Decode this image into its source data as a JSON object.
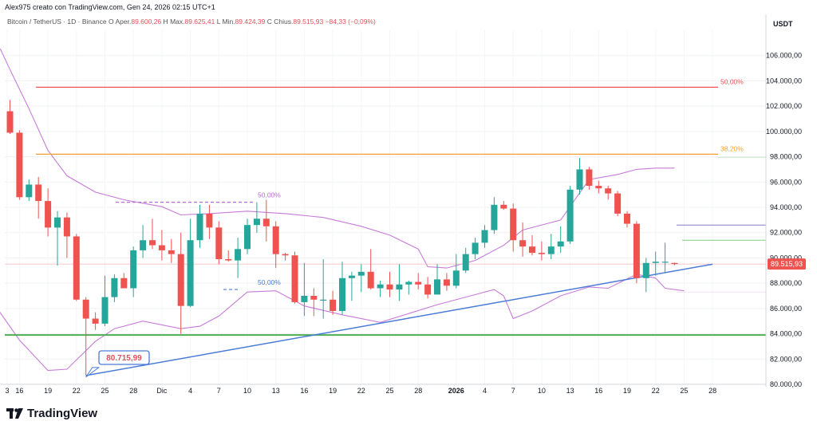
{
  "header": {
    "credit": "Alex975 creato con TradingView.com, Gen 24, 2026 02:15 UTC+1"
  },
  "info": {
    "symbol": "Bitcoin / TetherUS · 1D · Binance",
    "open_label": "O",
    "open_key": "Aper.",
    "open_value": "89.600,26",
    "high_label": "H",
    "high_key": "Max.",
    "high_value": "89.625,41",
    "low_label": "L",
    "low_key": "Min.",
    "low_value": "89.424,39",
    "close_label": "C",
    "close_key": "Chius.",
    "close_value": "89.515,93",
    "change_value": "−84,33 (−0,09%)"
  },
  "brand": {
    "name": "TradingView"
  },
  "colors": {
    "up": "#26a69a",
    "down": "#ef5350",
    "bb": "#c77bd8",
    "fib50": "#ef5350",
    "fib38": "#f0a030",
    "support": "#4caf50",
    "trend": "#4a7bd6",
    "price": "#ef5350"
  },
  "chart_data": {
    "type": "candlestick",
    "currency": "USDT",
    "ylim": [
      80000,
      108000
    ],
    "y_ticks": [
      80000,
      82000,
      84000,
      86000,
      88000,
      90000,
      92000,
      94000,
      96000,
      98000,
      100000,
      102000,
      104000,
      106000
    ],
    "y_tick_labels": [
      "80.000,00",
      "82.000,00",
      "84.000,00",
      "86.000,00",
      "88.000,00",
      "90.000,00",
      "92.000,00",
      "94.000,00",
      "96.000,00",
      "98.000,00",
      "100.000,00",
      "102.000,00",
      "104.000,00",
      "106.000,00"
    ],
    "x_tick_labels": [
      "3",
      "16",
      "19",
      "22",
      "25",
      "28",
      "Dic",
      "4",
      "7",
      "10",
      "13",
      "16",
      "19",
      "22",
      "25",
      "28",
      "2026",
      "4",
      "7",
      "10",
      "13",
      "16",
      "19",
      "22",
      "25",
      "28"
    ],
    "x_tick_index": [
      -12,
      1,
      4,
      7,
      10,
      13,
      16,
      19,
      22,
      25,
      28,
      31,
      34,
      37,
      40,
      43,
      47,
      50,
      53,
      56,
      59,
      62,
      65,
      68,
      71,
      74
    ],
    "candles": [
      {
        "o": 101600,
        "h": 102500,
        "l": 99800,
        "c": 99900
      },
      {
        "o": 99900,
        "h": 100100,
        "l": 94600,
        "c": 94800
      },
      {
        "o": 94800,
        "h": 96200,
        "l": 94500,
        "c": 95800
      },
      {
        "o": 95800,
        "h": 96400,
        "l": 93100,
        "c": 94500
      },
      {
        "o": 94500,
        "h": 95500,
        "l": 91700,
        "c": 92400
      },
      {
        "o": 92400,
        "h": 93700,
        "l": 89400,
        "c": 93200
      },
      {
        "o": 93200,
        "h": 93600,
        "l": 90000,
        "c": 91700
      },
      {
        "o": 91700,
        "h": 91900,
        "l": 86600,
        "c": 86700
      },
      {
        "o": 86700,
        "h": 86900,
        "l": 80700,
        "c": 85200
      },
      {
        "o": 85200,
        "h": 85700,
        "l": 84300,
        "c": 84800
      },
      {
        "o": 84800,
        "h": 88600,
        "l": 84600,
        "c": 86900
      },
      {
        "o": 86900,
        "h": 88700,
        "l": 86500,
        "c": 88400
      },
      {
        "o": 88400,
        "h": 88800,
        "l": 87600,
        "c": 87600
      },
      {
        "o": 87600,
        "h": 90900,
        "l": 86900,
        "c": 90600
      },
      {
        "o": 90600,
        "h": 92600,
        "l": 90000,
        "c": 91400
      },
      {
        "o": 91400,
        "h": 93100,
        "l": 90700,
        "c": 91000
      },
      {
        "o": 91000,
        "h": 92200,
        "l": 89800,
        "c": 90600
      },
      {
        "o": 90600,
        "h": 91500,
        "l": 89600,
        "c": 90300
      },
      {
        "o": 90300,
        "h": 92000,
        "l": 84000,
        "c": 86200
      },
      {
        "o": 86200,
        "h": 93100,
        "l": 86100,
        "c": 91400
      },
      {
        "o": 91400,
        "h": 94200,
        "l": 90800,
        "c": 93500
      },
      {
        "o": 93500,
        "h": 94200,
        "l": 91500,
        "c": 92400
      },
      {
        "o": 92400,
        "h": 92900,
        "l": 89500,
        "c": 89900
      },
      {
        "o": 89900,
        "h": 90600,
        "l": 89700,
        "c": 89800
      },
      {
        "o": 89800,
        "h": 91600,
        "l": 88400,
        "c": 90700
      },
      {
        "o": 90700,
        "h": 93100,
        "l": 90300,
        "c": 92600
      },
      {
        "o": 92600,
        "h": 94400,
        "l": 92000,
        "c": 93100
      },
      {
        "o": 93100,
        "h": 94600,
        "l": 91300,
        "c": 92500
      },
      {
        "o": 92500,
        "h": 92900,
        "l": 89200,
        "c": 90300
      },
      {
        "o": 90300,
        "h": 90400,
        "l": 89800,
        "c": 90200
      },
      {
        "o": 90200,
        "h": 90500,
        "l": 86400,
        "c": 86500
      },
      {
        "o": 86500,
        "h": 89600,
        "l": 85400,
        "c": 87000
      },
      {
        "o": 87000,
        "h": 87600,
        "l": 85400,
        "c": 86700
      },
      {
        "o": 86700,
        "h": 89900,
        "l": 85200,
        "c": 86700
      },
      {
        "o": 86700,
        "h": 87400,
        "l": 85500,
        "c": 85800
      },
      {
        "o": 85800,
        "h": 89700,
        "l": 85500,
        "c": 88400
      },
      {
        "o": 88400,
        "h": 88900,
        "l": 86600,
        "c": 88600
      },
      {
        "o": 88600,
        "h": 89500,
        "l": 87300,
        "c": 88900
      },
      {
        "o": 88900,
        "h": 90700,
        "l": 87500,
        "c": 87600
      },
      {
        "o": 87600,
        "h": 88200,
        "l": 86900,
        "c": 87900
      },
      {
        "o": 87900,
        "h": 88900,
        "l": 86900,
        "c": 87500
      },
      {
        "o": 87500,
        "h": 89500,
        "l": 86600,
        "c": 87900
      },
      {
        "o": 87900,
        "h": 88200,
        "l": 87100,
        "c": 88100
      },
      {
        "o": 88100,
        "h": 88800,
        "l": 87500,
        "c": 87900
      },
      {
        "o": 87900,
        "h": 88500,
        "l": 86800,
        "c": 87100
      },
      {
        "o": 87100,
        "h": 89500,
        "l": 87100,
        "c": 88300
      },
      {
        "o": 88300,
        "h": 88800,
        "l": 87400,
        "c": 87800
      },
      {
        "o": 87800,
        "h": 90300,
        "l": 87600,
        "c": 89000
      },
      {
        "o": 89000,
        "h": 90800,
        "l": 88800,
        "c": 90300
      },
      {
        "o": 90300,
        "h": 91600,
        "l": 89900,
        "c": 91200
      },
      {
        "o": 91200,
        "h": 92600,
        "l": 90800,
        "c": 92200
      },
      {
        "o": 92200,
        "h": 94800,
        "l": 91900,
        "c": 94200
      },
      {
        "o": 94200,
        "h": 94500,
        "l": 93800,
        "c": 93900
      },
      {
        "o": 93900,
        "h": 94300,
        "l": 90500,
        "c": 91400
      },
      {
        "o": 91400,
        "h": 92800,
        "l": 90100,
        "c": 90900
      },
      {
        "o": 90900,
        "h": 91800,
        "l": 90200,
        "c": 90400
      },
      {
        "o": 90400,
        "h": 91300,
        "l": 89800,
        "c": 90300
      },
      {
        "o": 90300,
        "h": 91900,
        "l": 89900,
        "c": 90900
      },
      {
        "o": 90900,
        "h": 92500,
        "l": 90400,
        "c": 91300
      },
      {
        "o": 91300,
        "h": 95700,
        "l": 91100,
        "c": 95400
      },
      {
        "o": 95400,
        "h": 97900,
        "l": 95000,
        "c": 97000
      },
      {
        "o": 97000,
        "h": 97200,
        "l": 95400,
        "c": 95700
      },
      {
        "o": 95700,
        "h": 96100,
        "l": 95100,
        "c": 95500
      },
      {
        "o": 95500,
        "h": 95700,
        "l": 94600,
        "c": 95100
      },
      {
        "o": 95100,
        "h": 95300,
        "l": 93300,
        "c": 93500
      },
      {
        "o": 93500,
        "h": 93700,
        "l": 92400,
        "c": 92700
      },
      {
        "o": 92700,
        "h": 92900,
        "l": 88000,
        "c": 88400
      },
      {
        "o": 88400,
        "h": 90000,
        "l": 87300,
        "c": 89600
      },
      {
        "o": 89600,
        "h": 90500,
        "l": 88600,
        "c": 89700
      },
      {
        "o": 89700,
        "h": 91200,
        "l": 88800,
        "c": 89700
      },
      {
        "o": 89600,
        "h": 89625,
        "l": 89424,
        "c": 89516
      }
    ],
    "bollinger": {
      "upper": [
        [
          -12,
          108400
        ],
        [
          -10,
          108300
        ],
        [
          -6,
          107800
        ],
        [
          -4,
          107500
        ],
        [
          -1,
          106500
        ],
        [
          0,
          104900
        ],
        [
          2,
          101800
        ],
        [
          4,
          98500
        ],
        [
          6,
          96500
        ],
        [
          9,
          95200
        ],
        [
          12,
          94600
        ],
        [
          16,
          94050
        ],
        [
          18,
          93400
        ],
        [
          21,
          93500
        ],
        [
          25,
          93700
        ],
        [
          29,
          93500
        ],
        [
          33,
          93200
        ],
        [
          37,
          92500
        ],
        [
          40,
          91800
        ],
        [
          43,
          90700
        ],
        [
          44,
          89300
        ],
        [
          46,
          89200
        ],
        [
          49,
          89800
        ],
        [
          52,
          91000
        ],
        [
          54,
          92200
        ],
        [
          58,
          93000
        ],
        [
          61,
          96200
        ],
        [
          64,
          96600
        ],
        [
          66,
          97000
        ],
        [
          68,
          97100
        ],
        [
          70,
          97100
        ]
      ],
      "lower": [
        [
          -12,
          102000
        ],
        [
          -9,
          94900
        ],
        [
          -5,
          90400
        ],
        [
          -2,
          86700
        ],
        [
          1,
          83500
        ],
        [
          4,
          81100
        ],
        [
          6,
          81200
        ],
        [
          9,
          83400
        ],
        [
          11,
          84400
        ],
        [
          14,
          85000
        ],
        [
          18,
          84400
        ],
        [
          20,
          84600
        ],
        [
          22,
          85400
        ],
        [
          25,
          87300
        ],
        [
          28,
          87400
        ],
        [
          31,
          86200
        ],
        [
          35,
          85500
        ],
        [
          39,
          84900
        ],
        [
          42,
          85600
        ],
        [
          45,
          86300
        ],
        [
          48,
          86900
        ],
        [
          51,
          87500
        ],
        [
          52,
          87000
        ],
        [
          53,
          85200
        ],
        [
          55,
          85800
        ],
        [
          58,
          87000
        ],
        [
          61,
          87700
        ],
        [
          63,
          87600
        ],
        [
          66,
          88700
        ],
        [
          68,
          88400
        ],
        [
          69,
          87600
        ],
        [
          71,
          87400
        ]
      ]
    },
    "levels": [
      {
        "name": "fib_50",
        "value": 103500,
        "label": "50,00%"
      },
      {
        "name": "fib_38",
        "value": 98200,
        "label": "38,20%"
      },
      {
        "name": "support",
        "value": 83900,
        "label": ""
      },
      {
        "name": "level_92600",
        "value": 92600,
        "label": ""
      },
      {
        "name": "level_91400",
        "value": 91400,
        "label": ""
      }
    ],
    "dashed_levels": [
      {
        "value": 94400,
        "label": "50,00%",
        "color": "#b86bd6"
      },
      {
        "value": 87500,
        "label": "50,00%",
        "color": "#4a7bd6"
      }
    ],
    "trendline": {
      "from": [
        8,
        80700
      ],
      "to": [
        74,
        89500
      ]
    },
    "annotation": {
      "label": "80.715,99"
    },
    "last_price": {
      "value": 89515.93,
      "label": "89.515,93"
    }
  }
}
